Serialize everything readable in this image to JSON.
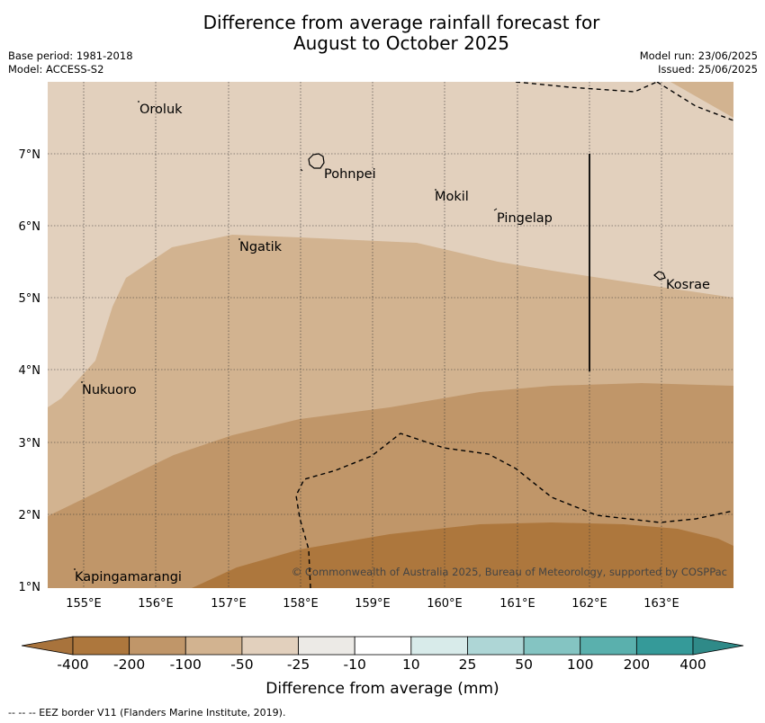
{
  "title_line1": "Difference from average rainfall forecast for",
  "title_line2": "August to October 2025",
  "meta": {
    "base_period": "Base period: 1981-2018",
    "model": "Model: ACCESS-S2",
    "model_run": "Model run: 23/06/2025",
    "issued": "Issued: 25/06/2025"
  },
  "axes": {
    "lon_ticks": [
      "155°E",
      "156°E",
      "157°E",
      "158°E",
      "159°E",
      "160°E",
      "161°E",
      "162°E",
      "163°E"
    ],
    "lat_ticks": [
      "7°N",
      "6°N",
      "5°N",
      "4°N",
      "3°N",
      "2°N",
      "1°N"
    ]
  },
  "places": [
    "Oroluk",
    "Pohnpei",
    "Mokil",
    "Pingelap",
    "Ngatik",
    "Kosrae",
    "Nukuoro",
    "Kapingamarangi"
  ],
  "copyright": "© Commonwealth of Australia 2025, Bureau of Meteorology, supported by COSPPac",
  "colorbar": {
    "labels": [
      "-400",
      "-200",
      "-100",
      "-50",
      "-25",
      "-10",
      "10",
      "25",
      "50",
      "100",
      "200",
      "400"
    ],
    "colors": [
      "#a8733c",
      "#ad773d",
      "#c09669",
      "#d2b390",
      "#e2d0bd",
      "#eceae6",
      "#ffffff",
      "#d8ebea",
      "#aed6d6",
      "#84c4c2",
      "#5ab0ad",
      "#359a99",
      "#2f8a88"
    ],
    "title": "Difference from average (mm)"
  },
  "footnote": "--  --  -- EEZ border V11 (Flanders Marine Institute, 2019)."
}
